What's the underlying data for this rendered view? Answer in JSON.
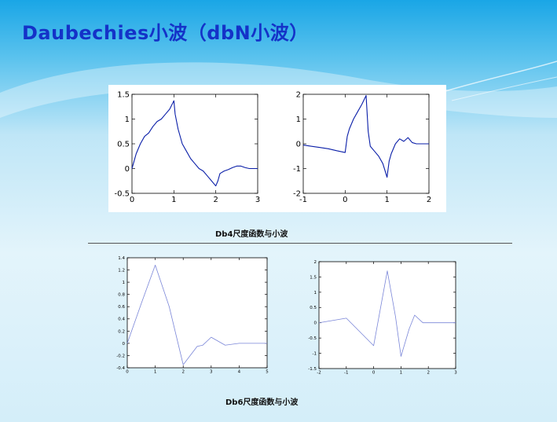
{
  "slide": {
    "title": "Daubechies小波（dbN小波）"
  },
  "captions": {
    "db4": "Db4尺度函数与小波",
    "db6": "Db6尺度函数与小波"
  },
  "colors": {
    "title": "#1432c8",
    "curve": "#0a1ea8",
    "curve_light": "#7a86d8"
  },
  "chart_data": [
    {
      "type": "line",
      "xlim": [
        0,
        3
      ],
      "ylim": [
        -0.5,
        1.5
      ],
      "xticks": [
        "0",
        "1",
        "2",
        "3"
      ],
      "yticks": [
        "-0.5",
        "0",
        "0.5",
        "1",
        "1.5"
      ],
      "series": [
        {
          "x": [
            0,
            0.05,
            0.1,
            0.2,
            0.3,
            0.4,
            0.5,
            0.6,
            0.7,
            0.8,
            0.9,
            1.0,
            1.03,
            1.1,
            1.2,
            1.3,
            1.4,
            1.5,
            1.6,
            1.7,
            1.8,
            1.9,
            2.0,
            2.05,
            2.1,
            2.2,
            2.3,
            2.4,
            2.5,
            2.6,
            2.7,
            2.8,
            2.9,
            3.0
          ],
          "y": [
            0,
            0.15,
            0.3,
            0.5,
            0.65,
            0.72,
            0.85,
            0.95,
            1.0,
            1.1,
            1.2,
            1.37,
            1.1,
            0.8,
            0.5,
            0.35,
            0.2,
            0.1,
            0.0,
            -0.05,
            -0.15,
            -0.25,
            -0.35,
            -0.25,
            -0.1,
            -0.05,
            -0.02,
            0.02,
            0.05,
            0.05,
            0.02,
            0.0,
            0.0,
            0.0
          ]
        }
      ]
    },
    {
      "type": "line",
      "xlim": [
        -1,
        2
      ],
      "ylim": [
        -2,
        2
      ],
      "xticks": [
        "-1",
        "0",
        "1",
        "2"
      ],
      "yticks": [
        "-2",
        "-1",
        "0",
        "1",
        "2"
      ],
      "series": [
        {
          "x": [
            -1,
            -0.8,
            -0.6,
            -0.4,
            -0.2,
            0.0,
            0.05,
            0.1,
            0.2,
            0.3,
            0.4,
            0.5,
            0.55,
            0.6,
            0.7,
            0.8,
            0.9,
            1.0,
            1.05,
            1.1,
            1.2,
            1.3,
            1.4,
            1.5,
            1.6,
            1.7,
            1.8,
            2.0
          ],
          "y": [
            -0.05,
            -0.1,
            -0.15,
            -0.2,
            -0.28,
            -0.35,
            0.3,
            0.6,
            1.0,
            1.3,
            1.6,
            1.95,
            0.5,
            -0.1,
            -0.3,
            -0.5,
            -0.8,
            -1.35,
            -0.7,
            -0.4,
            0.0,
            0.2,
            0.1,
            0.25,
            0.05,
            0.0,
            0.0,
            0.0
          ]
        }
      ]
    },
    {
      "type": "line",
      "xlim": [
        0,
        5
      ],
      "ylim": [
        -0.4,
        1.4
      ],
      "xticks": [
        "0",
        "1",
        "2",
        "3",
        "4",
        "5"
      ],
      "yticks": [
        "-0.4",
        "-0.2",
        "0",
        "0.2",
        "0.4",
        "0.6",
        "0.8",
        "1",
        "1.2",
        "1.4"
      ],
      "series": [
        {
          "x": [
            0,
            0.5,
            1.0,
            1.5,
            2.0,
            2.5,
            2.7,
            3.0,
            3.5,
            4.0,
            4.5,
            5.0
          ],
          "y": [
            0,
            0.65,
            1.28,
            0.6,
            -0.35,
            -0.05,
            -0.03,
            0.1,
            -0.03,
            0.0,
            0.0,
            0.0
          ]
        }
      ]
    },
    {
      "type": "line",
      "xlim": [
        -2,
        3
      ],
      "ylim": [
        -1.5,
        2
      ],
      "xticks": [
        "-2",
        "-1",
        "0",
        "1",
        "2",
        "3"
      ],
      "yticks": [
        "-1.5",
        "-1",
        "-0.5",
        "0",
        "0.5",
        "1",
        "1.5",
        "2"
      ],
      "series": [
        {
          "x": [
            -2,
            -1.0,
            0.0,
            0.5,
            0.8,
            1.0,
            1.3,
            1.5,
            1.8,
            2.0,
            2.5,
            3.0
          ],
          "y": [
            0,
            0.15,
            -0.75,
            1.7,
            0.2,
            -1.1,
            -0.2,
            0.25,
            0.0,
            0.0,
            0.0,
            0.0
          ]
        }
      ]
    }
  ]
}
